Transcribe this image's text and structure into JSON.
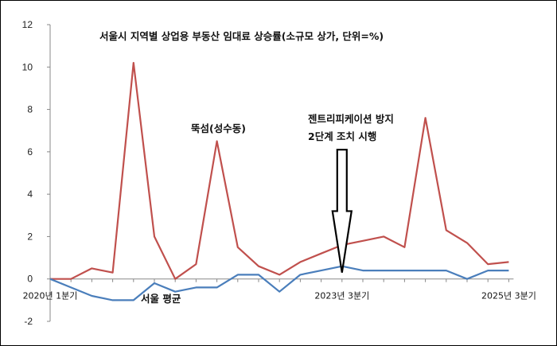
{
  "chart_data": {
    "type": "line",
    "title": "서울시 지역별 상업용 부동산 임대료 상승률(소규모 상가, 단위=%)",
    "ylim": [
      -2,
      12
    ],
    "y_ticks": [
      "-2",
      "0",
      "2",
      "4",
      "6",
      "8",
      "10",
      "12"
    ],
    "grid": false,
    "x_count": 23,
    "x_tick_labels": [
      {
        "index": 0,
        "label": "2020년 1분기"
      },
      {
        "index": 14,
        "label": "2023년 3분기"
      },
      {
        "index": 22,
        "label": "2025년 3분기"
      }
    ],
    "series": [
      {
        "name": "뚝섬(성수동)",
        "color": "#c0504d",
        "values": [
          0,
          0,
          0.5,
          0.3,
          10.2,
          2.0,
          0,
          0.7,
          6.5,
          1.5,
          0.6,
          0.2,
          0.8,
          1.2,
          1.6,
          1.8,
          2.0,
          1.5,
          7.6,
          2.3,
          1.7,
          0.7,
          0.8
        ]
      },
      {
        "name": "서울 평균",
        "color": "#4a7ebb",
        "values": [
          0,
          -0.4,
          -0.8,
          -1.0,
          -1.0,
          -0.2,
          -0.6,
          -0.4,
          -0.4,
          0.2,
          0.2,
          -0.6,
          0.2,
          0.4,
          0.6,
          0.4,
          0.4,
          0.4,
          0.4,
          0.4,
          0,
          0.4,
          0.4
        ]
      }
    ],
    "annotations": {
      "policy_line1": "젠트리피케이션 방지",
      "policy_line2": "2단계 조치 시행",
      "arrow_target_index": 14
    }
  }
}
